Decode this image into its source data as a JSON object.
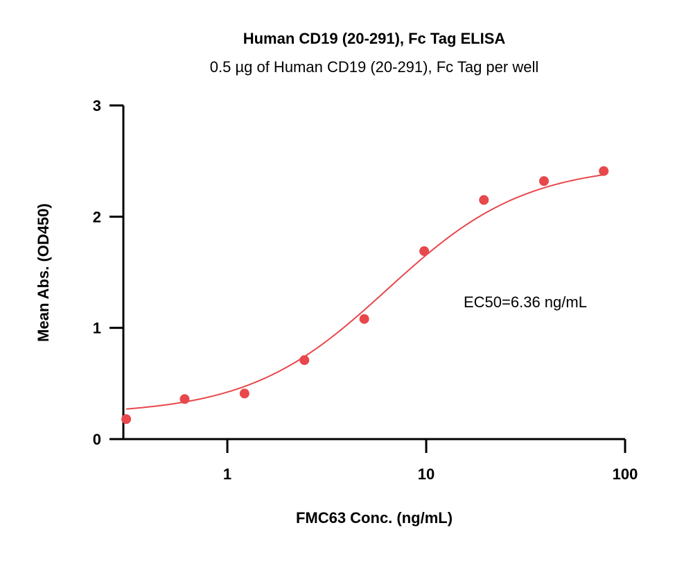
{
  "chart_data": {
    "type": "scatter",
    "title": "Human CD19 (20-291), Fc Tag ELISA",
    "subtitle": "0.5 µg of Human CD19 (20-291), Fc Tag per well",
    "xlabel": "FMC63 Conc. (ng/mL)",
    "ylabel": "Mean Abs. (OD450)",
    "x_scale": "log",
    "xlim": [
      0.3,
      100
    ],
    "ylim": [
      0,
      3
    ],
    "x_ticks": [
      1,
      10,
      100
    ],
    "x_tick_labels": [
      "1",
      "10",
      "100"
    ],
    "y_ticks": [
      0,
      1,
      2,
      3
    ],
    "y_tick_labels": [
      "0",
      "1",
      "2",
      "3"
    ],
    "grid": false,
    "color": "#e8474b",
    "annotation": "EC50=6.36 ng/mL",
    "points": [
      {
        "x": 0.31,
        "y": 0.18
      },
      {
        "x": 0.61,
        "y": 0.36
      },
      {
        "x": 1.22,
        "y": 0.41
      },
      {
        "x": 2.44,
        "y": 0.71
      },
      {
        "x": 4.88,
        "y": 1.08
      },
      {
        "x": 9.77,
        "y": 1.69
      },
      {
        "x": 19.5,
        "y": 2.15
      },
      {
        "x": 39.1,
        "y": 2.32
      },
      {
        "x": 78.1,
        "y": 2.41
      }
    ],
    "fit": {
      "model": "4PL",
      "bottom": 0.22,
      "top": 2.47,
      "ec50": 6.36,
      "hill": 1.25
    }
  }
}
